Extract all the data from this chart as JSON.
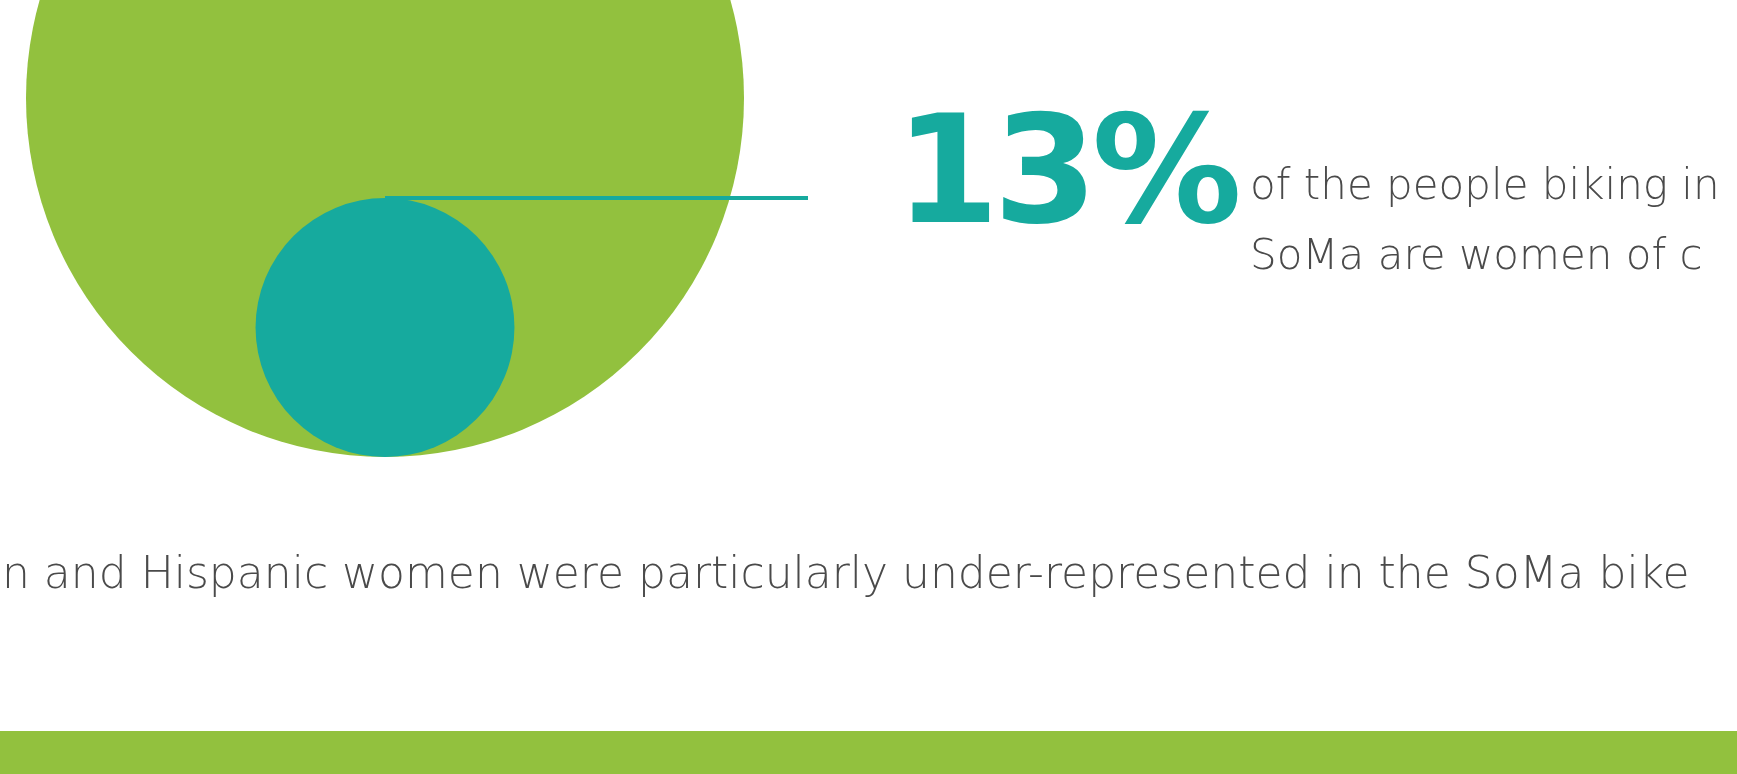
{
  "chart_data": {
    "type": "other",
    "values": [
      13
    ],
    "value_labels": [
      "13%"
    ],
    "color": "#16aa9e",
    "annotations": [
      "of the people biking in",
      "SoMa are women of c",
      "n and Hispanic women were particularly under-represented in the SoMa bike"
    ]
  }
}
